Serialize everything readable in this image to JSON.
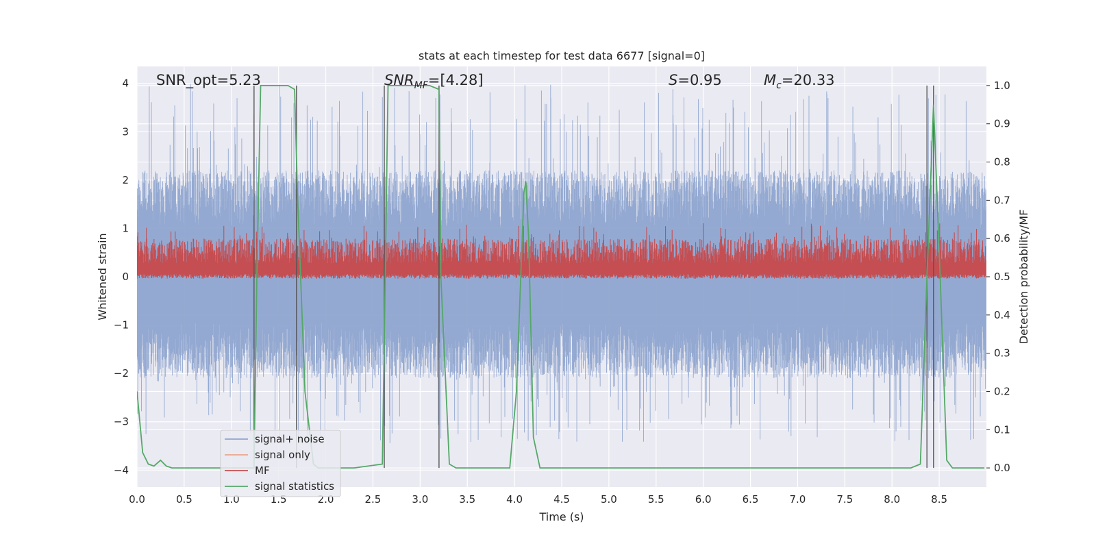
{
  "chart_data": {
    "type": "line",
    "title": "stats at each timestep for test data 6677 [signal=0]",
    "xlabel": "Time (s)",
    "ylabel": "Whitened strain",
    "y2label": "Detection probability/MF",
    "xlim": [
      0,
      9.0
    ],
    "ylim": [
      -4.35,
      4.35
    ],
    "y2lim": [
      -0.05,
      1.05
    ],
    "x_ticks": [
      0.0,
      0.5,
      1.0,
      1.5,
      2.0,
      2.5,
      3.0,
      3.5,
      4.0,
      4.5,
      5.0,
      5.5,
      6.0,
      6.5,
      7.0,
      7.5,
      8.0,
      8.5
    ],
    "x_tick_labels": [
      "0.0",
      "0.5",
      "1.0",
      "1.5",
      "2.0",
      "2.5",
      "3.0",
      "3.5",
      "4.0",
      "4.5",
      "5.0",
      "5.5",
      "6.0",
      "6.5",
      "7.0",
      "7.5",
      "8.0",
      "8.5"
    ],
    "y_ticks": [
      -4,
      -3,
      -2,
      -1,
      0,
      1,
      2,
      3,
      4
    ],
    "y_tick_labels": [
      "−4",
      "−3",
      "−2",
      "−1",
      "0",
      "1",
      "2",
      "3",
      "4"
    ],
    "y2_ticks": [
      0.0,
      0.1,
      0.2,
      0.3,
      0.4,
      0.5,
      0.6,
      0.7,
      0.8,
      0.9,
      1.0
    ],
    "y2_tick_labels": [
      "0.0",
      "0.1",
      "0.2",
      "0.3",
      "0.4",
      "0.5",
      "0.6",
      "0.7",
      "0.8",
      "0.9",
      "1.0"
    ],
    "grid": true,
    "annotations": {
      "snr_opt": "SNR_opt=5.23",
      "snr_mf": "=[4.28]",
      "snr_mf_symbol": "SNR",
      "snr_mf_sub": "MF",
      "s_value": "=0.95",
      "s_symbol": "S",
      "mc_value": "=20.33",
      "mc_symbol": "M",
      "mc_sub": "c"
    },
    "legend": {
      "placement": "lower-left",
      "entries": [
        "signal+ noise",
        "signal only",
        "MF",
        "signal statistics"
      ]
    },
    "series": [
      {
        "name": "signal+ noise",
        "color": "#8fa5cf",
        "axis": "left",
        "style": "dense noise",
        "range": [
          -3.45,
          4.0
        ],
        "core_range": [
          -2.1,
          2.2
        ]
      },
      {
        "name": "signal only",
        "color": "#e8a58a",
        "axis": "left",
        "values": []
      },
      {
        "name": "MF",
        "color": "#c44e52",
        "axis": "right",
        "style": "dense noise",
        "range": [
          0.495,
          0.64
        ],
        "core_range": [
          0.5,
          0.6
        ]
      },
      {
        "name": "signal statistics",
        "color": "#55a868",
        "axis": "right",
        "x": [
          0.0,
          0.06,
          0.12,
          0.18,
          0.25,
          0.31,
          0.37,
          0.43,
          0.5,
          0.8,
          1.1,
          1.24,
          1.27,
          1.31,
          1.4,
          1.6,
          1.67,
          1.7,
          1.78,
          1.87,
          1.92,
          2.0,
          2.3,
          2.6,
          2.63,
          2.66,
          2.7,
          2.8,
          3.1,
          3.2,
          3.22,
          3.31,
          3.38,
          3.5,
          3.8,
          3.95,
          4.02,
          4.1,
          4.12,
          4.15,
          4.2,
          4.27,
          4.6,
          5.5,
          6.5,
          7.5,
          8.2,
          8.3,
          8.37,
          8.44,
          8.51,
          8.58,
          8.64,
          8.75,
          8.98
        ],
        "values": [
          0.2,
          0.04,
          0.01,
          0.005,
          0.02,
          0.005,
          0.0,
          0.0,
          0.0,
          0.0,
          0.0,
          0.0,
          0.5,
          1.0,
          1.0,
          1.0,
          0.99,
          0.72,
          0.2,
          0.01,
          0.0,
          0.0,
          0.0,
          0.01,
          0.5,
          1.0,
          1.0,
          1.0,
          1.0,
          0.99,
          0.5,
          0.01,
          0.0,
          0.0,
          0.0,
          0.0,
          0.2,
          0.72,
          0.75,
          0.6,
          0.08,
          0.0,
          0.0,
          0.0,
          0.0,
          0.0,
          0.0,
          0.01,
          0.5,
          0.95,
          0.5,
          0.02,
          0.0,
          0.0,
          0.0
        ]
      }
    ],
    "vertical_markers": [
      1.24,
      1.69,
      2.62,
      3.2,
      8.37,
      8.44
    ]
  }
}
